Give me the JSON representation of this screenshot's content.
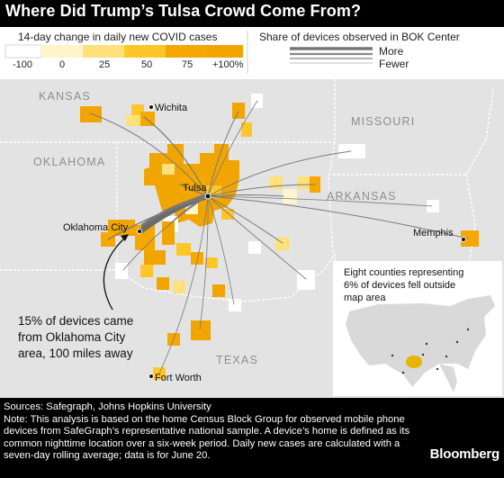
{
  "title": "Where Did Trump’s Tulsa Crowd Come From?",
  "legend": {
    "color_title": "14-day change in daily new COVID cases",
    "scale_labels": [
      "-100",
      "0",
      "25",
      "50",
      "75",
      "+100%"
    ],
    "scale_colors": [
      "#ffffff",
      "#fff5cc",
      "#ffe07a",
      "#ffc629",
      "#f5a800",
      "#f1a500"
    ],
    "line_title": "Share of devices observed in BOK Center",
    "more": "More",
    "fewer": "Fewer"
  },
  "map": {
    "states": [
      "KANSAS",
      "OKLAHOMA",
      "MISSOURI",
      "ARKANSAS",
      "TEXAS"
    ],
    "cities": [
      "Wichita",
      "Tulsa",
      "Oklahoma City",
      "Memphis",
      "Fort Worth"
    ],
    "annotation": [
      "15% of devices came",
      "from Oklahoma City",
      "area, 100 miles away"
    ],
    "inset_text": [
      "Eight counties representing",
      "6% of devices fell outside",
      "map area"
    ]
  },
  "footer": {
    "sources": "Sources: Safegraph, Johns Hopkins University",
    "note": "Note: This analysis is based on the home Census Block Group for observed mobile phone devices from SafeGraph’s representative national sample. A device’s home is defined as its common nighttime location over a six-week period. Daily new cases are calculated with a seven-day rolling average; data is for June 20."
  },
  "brand": "Bloomberg"
}
